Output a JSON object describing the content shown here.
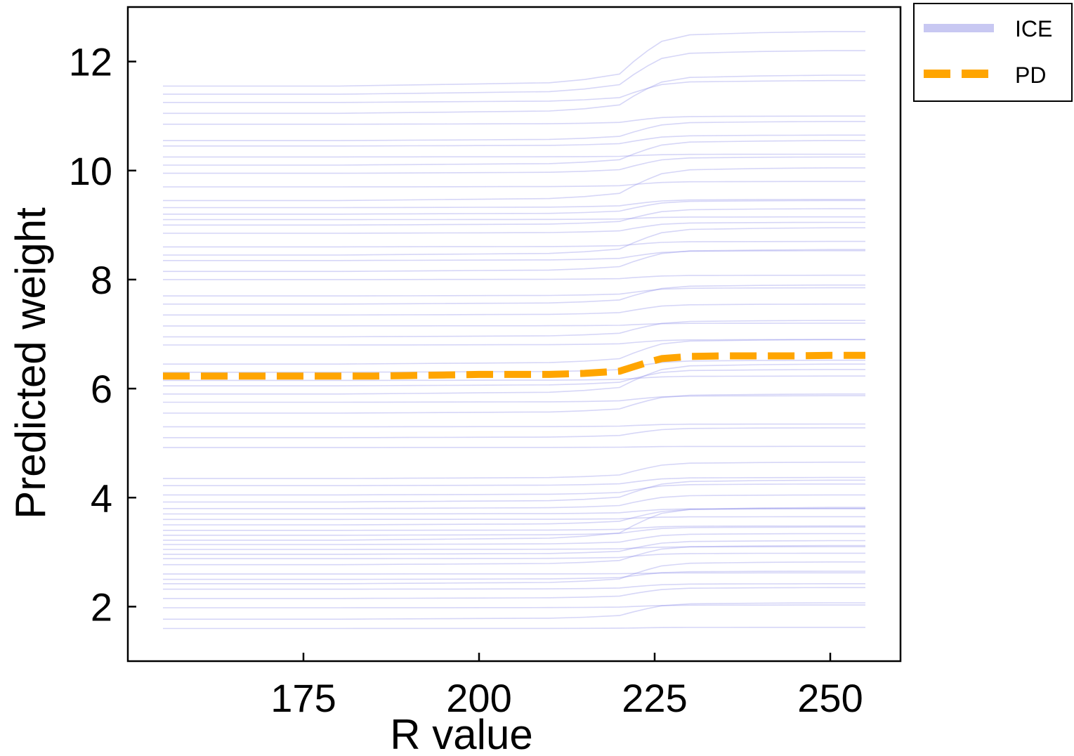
{
  "chart_data": {
    "type": "line",
    "title": "",
    "xlabel": "R value",
    "ylabel": "Predicted weight",
    "xlim": [
      150,
      260
    ],
    "ylim": [
      1.0,
      13.0
    ],
    "x_ticks": [
      175,
      200,
      225,
      250
    ],
    "y_ticks": [
      2,
      4,
      6,
      8,
      10,
      12
    ],
    "grid": false,
    "legend_position": "outside-top-right",
    "x": [
      155,
      160,
      165,
      170,
      175,
      180,
      185,
      190,
      195,
      200,
      205,
      210,
      215,
      220,
      222,
      224,
      226,
      228,
      230,
      235,
      240,
      245,
      250,
      255
    ],
    "series": [
      {
        "name": "PD",
        "style": "dashed",
        "color": "#FFA500",
        "values": [
          6.23,
          6.23,
          6.23,
          6.23,
          6.23,
          6.23,
          6.23,
          6.24,
          6.25,
          6.26,
          6.26,
          6.26,
          6.28,
          6.32,
          6.4,
          6.48,
          6.55,
          6.57,
          6.59,
          6.6,
          6.6,
          6.6,
          6.61,
          6.61
        ]
      },
      {
        "name": "ICE",
        "style": "solid",
        "color": "#8A8AE8",
        "ice_baselines": [
          1.6,
          1.77,
          1.98,
          2.15,
          2.32,
          2.42,
          2.5,
          2.6,
          2.77,
          2.88,
          2.96,
          3.05,
          3.14,
          3.22,
          3.31,
          3.4,
          3.5,
          3.6,
          3.7,
          3.8,
          3.92,
          4.05,
          4.22,
          4.35,
          4.92,
          5.1,
          5.3,
          5.55,
          5.75,
          5.9,
          6.05,
          6.15,
          6.3,
          6.45,
          6.8,
          6.95,
          7.15,
          7.35,
          7.55,
          7.7,
          8.0,
          8.15,
          8.35,
          8.45,
          8.6,
          8.85,
          9.0,
          9.1,
          9.2,
          9.32,
          9.45,
          9.7,
          9.95,
          10.1,
          10.25,
          10.45,
          10.55,
          10.85,
          11.05,
          11.25,
          11.4,
          11.55
        ],
        "ice_shifts": [
          0.02,
          0.3,
          0.05,
          0.2,
          0.1,
          0.4,
          0.15,
          0.02,
          0.35,
          0.1,
          0.25,
          0.05,
          0.2,
          0.6,
          0.15,
          0.08,
          0.3,
          0.05,
          0.1,
          0.25,
          0.4,
          0.2,
          0.15,
          0.3,
          0.02,
          0.18,
          0.05,
          0.35,
          0.12,
          0.55,
          0.3,
          0.08,
          0.22,
          0.45,
          0.1,
          0.3,
          0.05,
          0.2,
          0.35,
          0.15,
          0.08,
          0.4,
          0.18,
          0.5,
          0.1,
          0.2,
          0.3,
          0.05,
          0.25,
          0.15,
          0.6,
          0.1,
          0.3,
          0.45,
          0.05,
          0.2,
          0.35,
          0.15,
          0.7,
          0.4,
          0.8,
          1.0
        ],
        "ice_profile": [
          0,
          0,
          0,
          0,
          0,
          0,
          0.01,
          0.02,
          0.03,
          0.04,
          0.05,
          0.06,
          0.12,
          0.22,
          0.45,
          0.65,
          0.82,
          0.88,
          0.94,
          0.96,
          0.98,
          0.99,
          1.0,
          1.0
        ]
      }
    ]
  },
  "legend": [
    {
      "label": "ICE",
      "color": "#c8c8f2",
      "style": "solid"
    },
    {
      "label": "PD",
      "color": "#FFA500",
      "style": "dashed"
    }
  ]
}
